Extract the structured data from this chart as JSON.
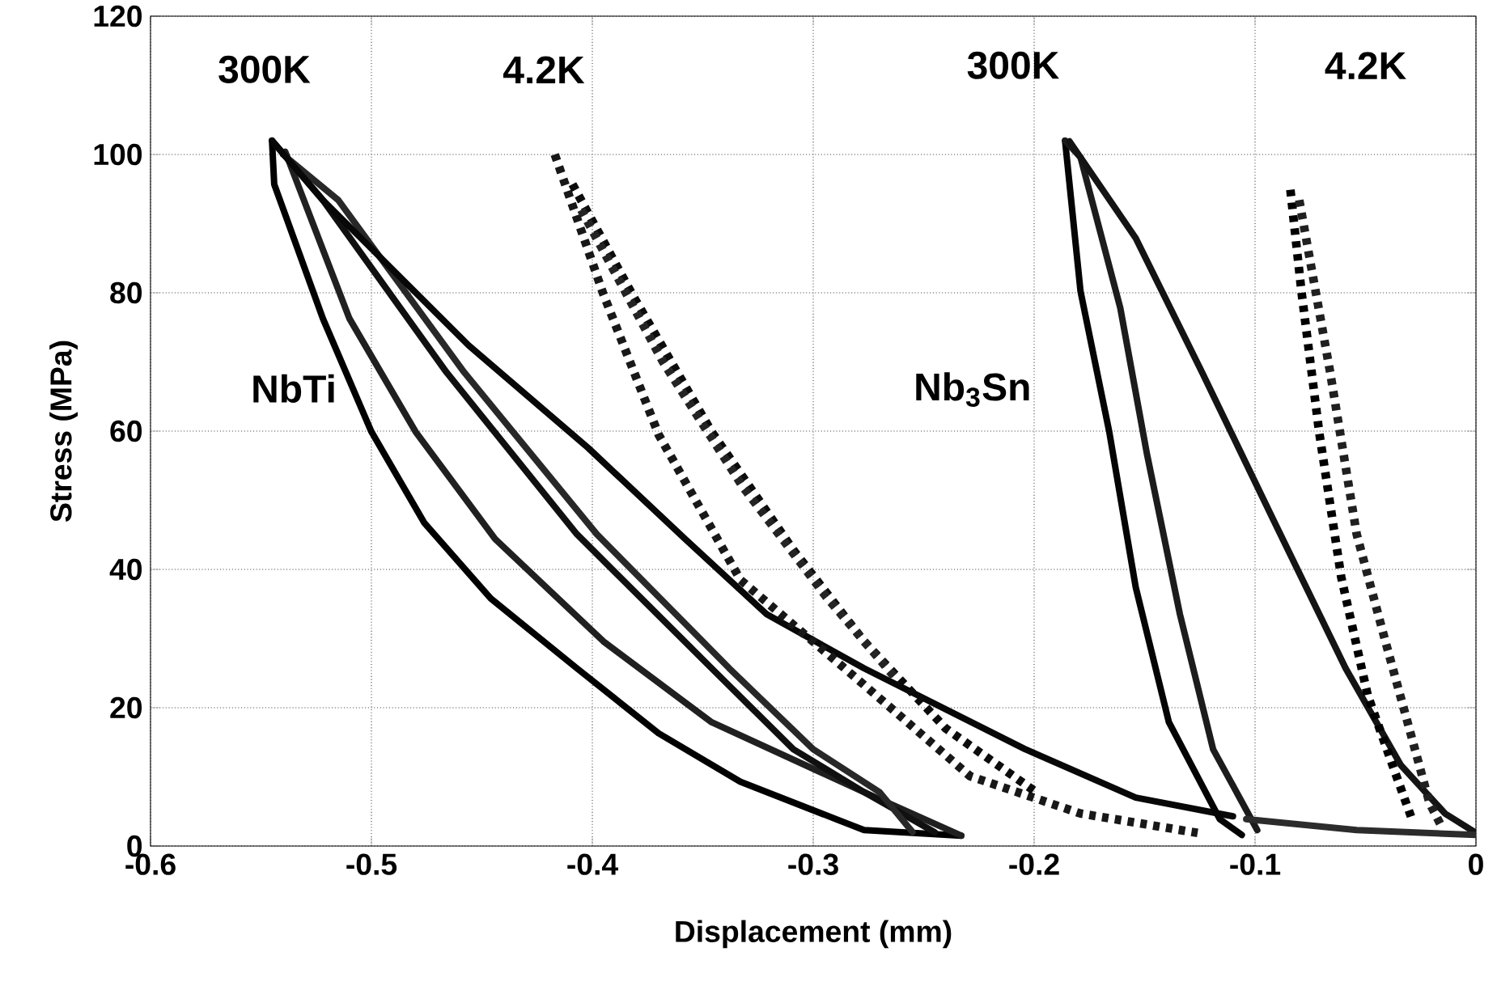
{
  "chart_data": {
    "type": "line",
    "xlabel": "Displacement (mm)",
    "ylabel": "Stress (MPa)",
    "xlim": [
      -0.6,
      0
    ],
    "ylim": [
      0,
      120
    ],
    "xticks": [
      -0.6,
      -0.5,
      -0.4,
      -0.3,
      -0.2,
      -0.1,
      0
    ],
    "yticks": [
      0,
      20,
      40,
      60,
      80,
      100,
      120
    ],
    "grid": true,
    "marker": "none",
    "line_style": "solid",
    "series": [
      {
        "color": "#000000",
        "x": [
          -0.545,
          -0.544,
          -0.522,
          -0.5,
          -0.476,
          -0.446,
          -0.407,
          -0.37,
          -0.333,
          -0.277,
          -0.233
        ],
        "values": [
          102,
          95.7,
          76.3,
          59.9,
          46.7,
          35.8,
          25.7,
          16.3,
          9.3,
          2.3,
          1.5
        ]
      },
      {
        "color": "#202020",
        "x": [
          -0.539,
          -0.51,
          -0.48,
          -0.444,
          -0.395,
          -0.346,
          -0.277,
          -0.233
        ],
        "values": [
          100.4,
          76.3,
          59.9,
          44.4,
          29.6,
          17.9,
          7.8,
          1.5
        ]
      },
      {
        "color": "#101010",
        "x": [
          -0.545,
          -0.522,
          -0.466,
          -0.407,
          -0.346,
          -0.309,
          -0.277,
          -0.245
        ],
        "values": [
          102,
          93.4,
          68.5,
          45.1,
          25.7,
          14.0,
          7.8,
          2
        ]
      },
      {
        "color": "#282828",
        "x": [
          -0.54,
          -0.515,
          -0.458,
          -0.398,
          -0.338,
          -0.3,
          -0.27,
          -0.255
        ],
        "values": [
          100,
          93.4,
          68.5,
          45.1,
          25.7,
          14.0,
          7.8,
          2
        ]
      },
      {
        "color": "#080808",
        "x": [
          -0.545,
          -0.522,
          -0.456,
          -0.402,
          -0.358,
          -0.321,
          -0.277,
          -0.204,
          -0.154,
          -0.11
        ],
        "values": [
          102,
          93.4,
          72.4,
          57.6,
          44.4,
          33.5,
          25.7,
          14.0,
          7.0,
          4.3
        ]
      },
      {
        "color": "#181818",
        "line_style": "dotted",
        "x": [
          -0.417,
          -0.395,
          -0.37,
          -0.333,
          -0.277,
          -0.229,
          -0.179,
          -0.126
        ],
        "values": [
          100,
          79.8,
          59.5,
          38.5,
          23.3,
          10.1,
          4.7,
          1.9
        ]
      },
      {
        "color": "#0c0c0c",
        "line_style": "dotted",
        "x": [
          -0.409,
          -0.382,
          -0.346,
          -0.309,
          -0.277,
          -0.24,
          -0.2
        ],
        "values": [
          95.7,
          79.8,
          59.9,
          42.8,
          29.6,
          17.0,
          8.0
        ]
      },
      {
        "color": "#242424",
        "line_style": "dotted",
        "x": [
          -0.405,
          -0.368,
          -0.332,
          -0.294,
          -0.262
        ],
        "values": [
          92,
          70,
          52,
          36,
          24
        ]
      },
      {
        "color": "#040404",
        "x": [
          -0.186,
          -0.179,
          -0.166,
          -0.154,
          -0.139,
          -0.116,
          -0.106
        ],
        "values": [
          102,
          80.2,
          59.9,
          37.4,
          17.9,
          3.9,
          1.6
        ]
      },
      {
        "color": "#1c1c1c",
        "x": [
          -0.186,
          -0.179,
          -0.161,
          -0.149,
          -0.134,
          -0.119,
          -0.099
        ],
        "values": [
          102,
          99.6,
          77.8,
          56.8,
          33.5,
          14.0,
          2.3
        ]
      },
      {
        "color": "#141414",
        "x": [
          -0.184,
          -0.154,
          -0.124,
          -0.091,
          -0.059,
          -0.034,
          -0.014,
          0
        ],
        "values": [
          101.9,
          87.9,
          68.5,
          46.7,
          25.7,
          11.7,
          4.7,
          1.9
        ]
      },
      {
        "color": "#2c2c2c",
        "x": [
          -0.104,
          -0.054,
          0
        ],
        "values": [
          3.9,
          2.3,
          1.6
        ]
      },
      {
        "color": "#000000",
        "line_style": "dotted",
        "x": [
          -0.084,
          -0.079,
          -0.071,
          -0.061,
          -0.049,
          -0.036,
          -0.029
        ],
        "values": [
          94.9,
          80.2,
          59.9,
          38.9,
          21.8,
          10.1,
          3.9
        ]
      },
      {
        "color": "#202020",
        "line_style": "dotted",
        "x": [
          -0.08,
          -0.066,
          -0.054,
          -0.041,
          -0.029,
          -0.021,
          -0.016
        ],
        "values": [
          93.4,
          68.5,
          45.1,
          29.6,
          15.6,
          6.2,
          3.1
        ]
      }
    ],
    "annotations": [
      "300K",
      "4.2K",
      "300K",
      "4.2K",
      "NbTi",
      "Nb$_{3}$Sn"
    ]
  }
}
